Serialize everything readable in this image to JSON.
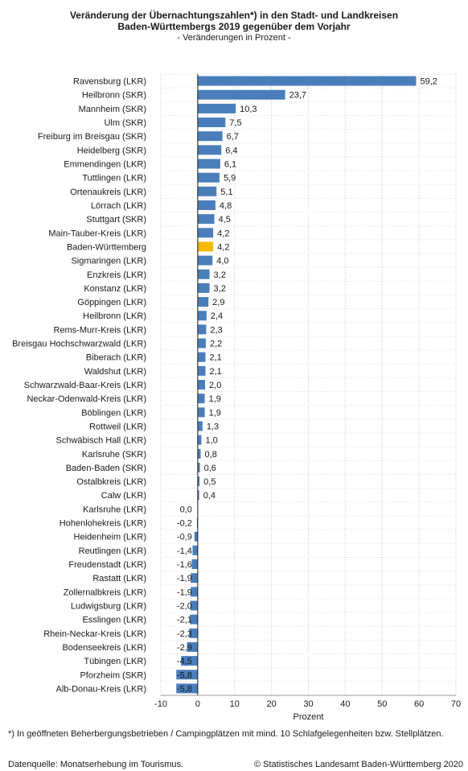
{
  "header": {
    "title_line1": "Veränderung der Übernachtungszahlen*) in den Stadt- und Landkreisen",
    "title_line2": "Baden-Württembergs 2019 gegenüber dem Vorjahr",
    "subtitle": "- Veränderungen in Prozent -"
  },
  "footer": {
    "footnote": "*) In geöffneten Beherbergungsbetrieben / Campingplätzen mit mind. 10 Schlafgelegenheiten bzw. Stellplätzen.",
    "source": "Datenquelle: Monatserhebung im Tourismus.",
    "copyright": "© Statistisches Landesamt Baden-Württemberg 2020"
  },
  "chart_data": {
    "type": "bar",
    "orientation": "horizontal",
    "xlabel": "Prozent",
    "xlim": [
      -10,
      70
    ],
    "xticks": [
      -10,
      0,
      10,
      20,
      30,
      40,
      50,
      60,
      70
    ],
    "grid": true,
    "bar_color": "#4a7ebb",
    "highlight_color": "#f5b800",
    "highlight_category": "Baden-Württemberg",
    "categories": [
      "Ravensburg (LKR)",
      "Heilbronn (SKR)",
      "Mannheim (SKR)",
      "Ulm (SKR)",
      "Freiburg im Breisgau (SKR)",
      "Heidelberg (SKR)",
      "Emmendingen (LKR)",
      "Tuttlingen (LKR)",
      "Ortenaukreis (LKR)",
      "Lörrach (LKR)",
      "Stuttgart (SKR)",
      "Main-Tauber-Kreis (LKR)",
      "Baden-Württemberg",
      "Sigmaringen (LKR)",
      "Enzkreis (LKR)",
      "Konstanz (LKR)",
      "Göppingen (LKR)",
      "Heilbronn (LKR)",
      "Rems-Murr-Kreis (LKR)",
      "Breisgau Hochschwarzwald (LKR)",
      "Biberach (LKR)",
      "Waldshut (LKR)",
      "Schwarzwald-Baar-Kreis (LKR)",
      "Neckar-Odenwald-Kreis (LKR)",
      "Böblingen (LKR)",
      "Rottweil (LKR)",
      "Schwäbisch Hall (LKR)",
      "Karlsruhe (SKR)",
      "Baden-Baden (SKR)",
      "Ostalbkreis (LKR)",
      "Calw (LKR)",
      "Karlsruhe (LKR)",
      "Hohenlohekreis (LKR)",
      "Heidenheim (LKR)",
      "Reutlingen (LKR)",
      "Freudenstadt (LKR)",
      "Rastatt (LKR)",
      "Zollernalbkreis (LKR)",
      "Ludwigsburg (LKR)",
      "Esslingen (LKR)",
      "Rhein-Neckar-Kreis (LKR)",
      "Bodenseekreis (LKR)",
      "Tübingen (LKR)",
      "Pforzheim (SKR)",
      "Alb-Donau-Kreis (LKR)"
    ],
    "values": [
      59.2,
      23.7,
      10.3,
      7.5,
      6.7,
      6.4,
      6.1,
      5.9,
      5.1,
      4.8,
      4.5,
      4.2,
      4.2,
      4.0,
      3.2,
      3.2,
      2.9,
      2.4,
      2.3,
      2.2,
      2.1,
      2.1,
      2.0,
      1.9,
      1.9,
      1.3,
      1.0,
      0.8,
      0.6,
      0.5,
      0.4,
      0.0,
      -0.2,
      -0.9,
      -1.4,
      -1.6,
      -1.9,
      -1.9,
      -2.0,
      -2.1,
      -2.3,
      -2.9,
      -4.5,
      -5.8,
      -5.8
    ],
    "value_labels": [
      "59,2",
      "23,7",
      "10,3",
      "7,5",
      "6,7",
      "6,4",
      "6,1",
      "5,9",
      "5,1",
      "4,8",
      "4,5",
      "4,2",
      "4,2",
      "4,0",
      "3,2",
      "3,2",
      "2,9",
      "2,4",
      "2,3",
      "2,2",
      "2,1",
      "2,1",
      "2,0",
      "1,9",
      "1,9",
      "1,3",
      "1,0",
      "0,8",
      "0,6",
      "0,5",
      "0,4",
      "0,0",
      "-0,2",
      "-0,9",
      "-1,4",
      "-1,6",
      "-1,9",
      "-1,9",
      "-2,0",
      "-2,1",
      "-2,3",
      "-2,9",
      "-4,5",
      "-5,8",
      "-5,8"
    ]
  }
}
